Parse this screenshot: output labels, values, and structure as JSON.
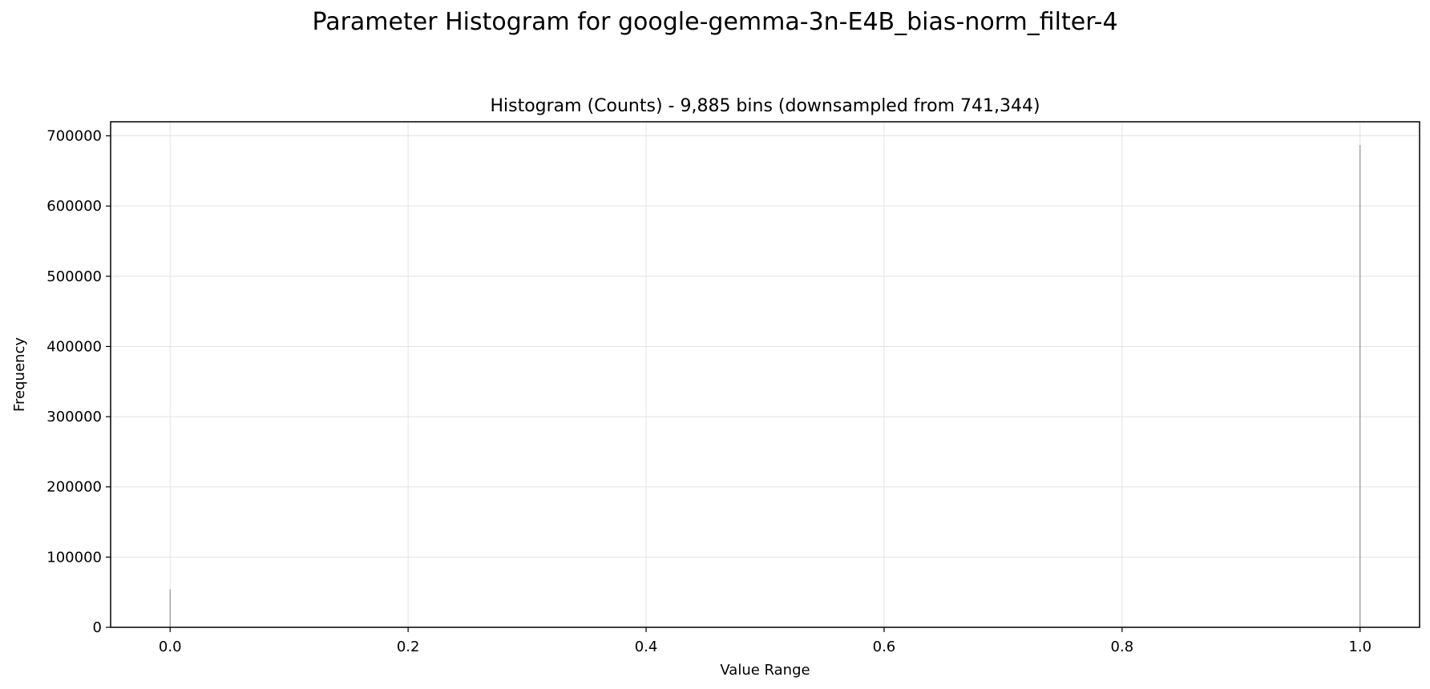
{
  "figure": {
    "suptitle": "Parameter Histogram for google-gemma-3n-E4B_bias-norm_filter-4"
  },
  "chart_data": {
    "type": "bar",
    "title": "Histogram (Counts) - 9,885 bins (downsampled from 741,344)",
    "xlabel": "Value Range",
    "ylabel": "Frequency",
    "xlim": [
      -0.05,
      1.05
    ],
    "ylim": [
      0,
      720000
    ],
    "xticks": [
      0.0,
      0.2,
      0.4,
      0.6,
      0.8,
      1.0
    ],
    "xtick_labels": [
      "0.0",
      "0.2",
      "0.4",
      "0.6",
      "0.8",
      "1.0"
    ],
    "yticks": [
      0,
      100000,
      200000,
      300000,
      400000,
      500000,
      600000,
      700000
    ],
    "ytick_labels": [
      "0",
      "100000",
      "200000",
      "300000",
      "400000",
      "500000",
      "600000",
      "700000"
    ],
    "grid": true,
    "bar_color": "#808080",
    "bars": [
      {
        "x": 0.0,
        "value": 54000
      },
      {
        "x": 1.0,
        "value": 687000
      }
    ]
  }
}
